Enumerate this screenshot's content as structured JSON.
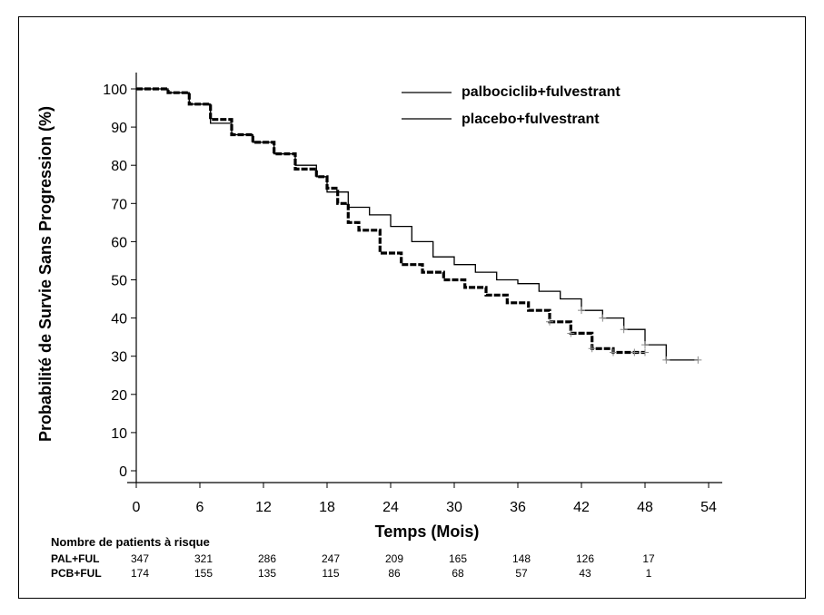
{
  "chart_data": {
    "type": "line",
    "ylabel": "Probabilité de Survie Sans Progression (%)",
    "xlabel": "Temps (Mois)",
    "xlim": [
      0,
      54
    ],
    "ylim": [
      0,
      100
    ],
    "xticks": [
      0,
      6,
      12,
      18,
      24,
      30,
      36,
      42,
      48,
      54
    ],
    "yticks": [
      0,
      10,
      20,
      30,
      40,
      50,
      60,
      70,
      80,
      90,
      100
    ],
    "grid": false,
    "legend_position": "top-right",
    "legend": [
      {
        "label": "palbociclib+fulvestrant"
      },
      {
        "label": "placebo+fulvestrant"
      }
    ],
    "series": [
      {
        "name": "palbociclib+fulvestrant",
        "color": "#000000",
        "style": "solid-thin",
        "x": [
          0,
          1,
          3,
          5,
          7,
          9,
          11,
          13,
          15,
          17,
          18,
          20,
          22,
          24,
          26,
          28,
          30,
          32,
          34,
          36,
          38,
          40,
          42,
          44,
          46,
          48,
          50,
          53
        ],
        "y": [
          100,
          100,
          99,
          96,
          91,
          88,
          86,
          83,
          80,
          77,
          73,
          69,
          67,
          64,
          60,
          56,
          54,
          52,
          50,
          49,
          47,
          45,
          42,
          40,
          37,
          33,
          29,
          29
        ]
      },
      {
        "name": "placebo+fulvestrant",
        "color": "#000000",
        "style": "thick",
        "x": [
          0,
          1,
          3,
          5,
          7,
          9,
          11,
          13,
          15,
          17,
          18,
          19,
          20,
          21,
          23,
          25,
          27,
          29,
          31,
          33,
          35,
          37,
          39,
          41,
          43,
          45,
          47,
          48
        ],
        "y": [
          100,
          100,
          99,
          96,
          92,
          88,
          86,
          83,
          79,
          77,
          74,
          70,
          65,
          63,
          57,
          54,
          52,
          50,
          48,
          46,
          44,
          42,
          39,
          36,
          32,
          31,
          31,
          31
        ]
      }
    ]
  },
  "risk_table": {
    "title": "Nombre de patients à risque",
    "rows": [
      {
        "label": "PAL+FUL",
        "values": [
          "347",
          "321",
          "286",
          "247",
          "209",
          "165",
          "148",
          "126",
          "17"
        ]
      },
      {
        "label": "PCB+FUL",
        "values": [
          "174",
          "155",
          "135",
          "115",
          "86",
          "68",
          "57",
          "43",
          "1"
        ]
      }
    ]
  }
}
